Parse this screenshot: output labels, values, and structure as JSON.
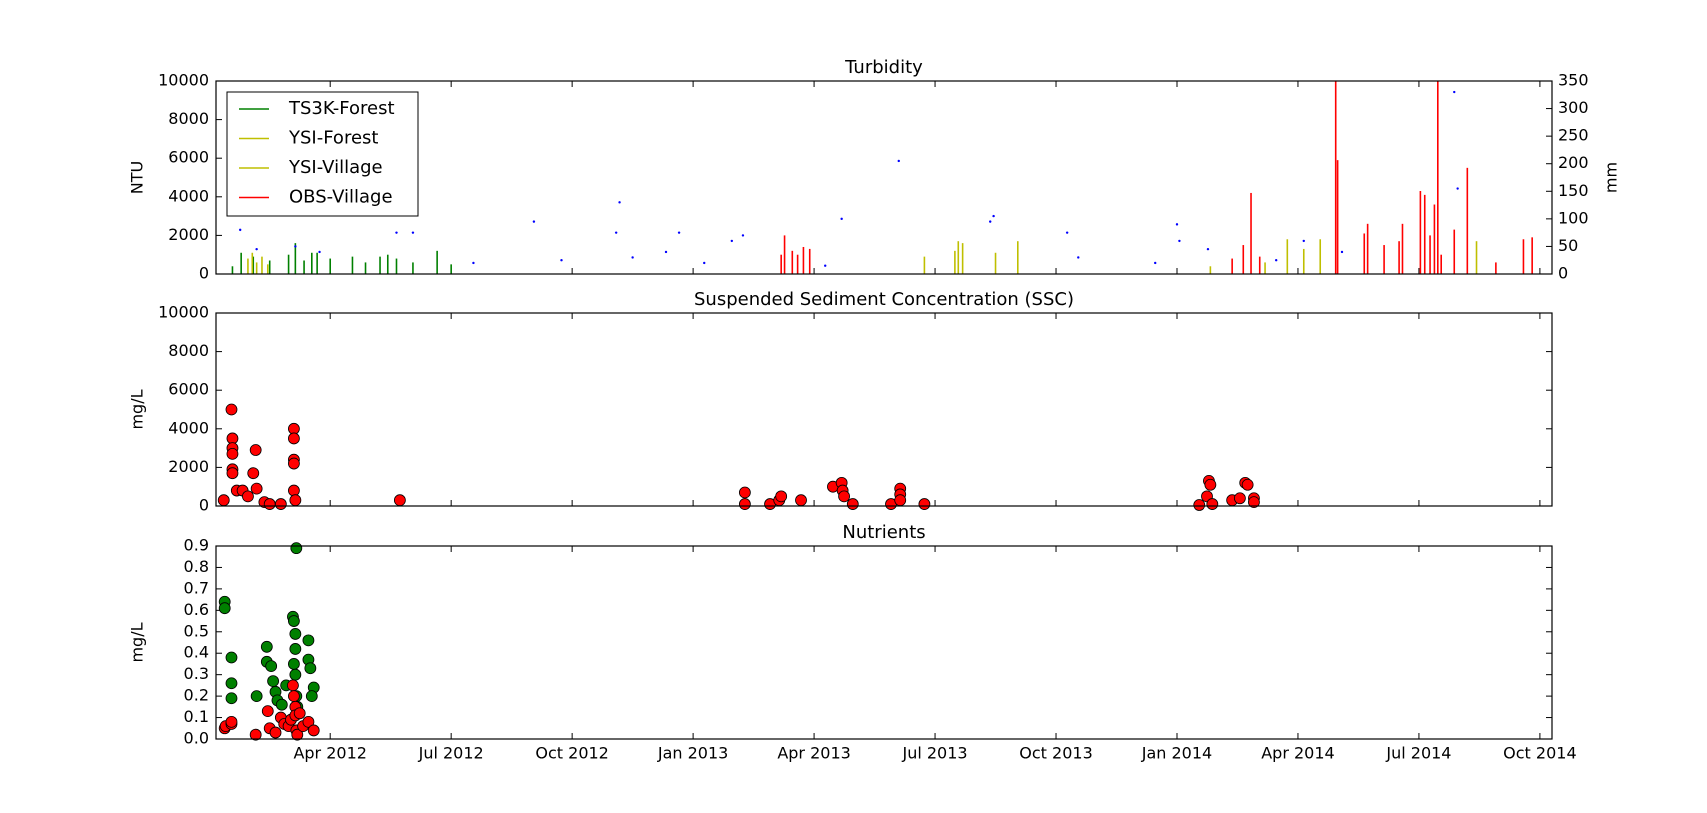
{
  "chart_data": [
    {
      "type": "line",
      "title": "Turbidity",
      "ylabel": "NTU",
      "y2label": "mm",
      "ylim": [
        0,
        10000
      ],
      "yticks": [
        0,
        2000,
        4000,
        6000,
        8000,
        10000
      ],
      "y2lim": [
        0,
        350
      ],
      "y2ticks": [
        0,
        50,
        100,
        150,
        200,
        250,
        300,
        350
      ],
      "xlim": [
        2012.014,
        2014.775
      ],
      "legend": "upper left",
      "series": [
        {
          "name": "TS3K-Forest",
          "color": "#008000",
          "x": [
            2012.048,
            2012.066,
            2012.091,
            2012.125,
            2012.164,
            2012.178,
            2012.196,
            2012.212,
            2012.223,
            2012.25,
            2012.296,
            2012.323,
            2012.353,
            2012.369,
            2012.387,
            2012.421,
            2012.471,
            2012.5
          ],
          "values": [
            400,
            1100,
            900,
            700,
            1000,
            1600,
            700,
            1100,
            1100,
            800,
            900,
            600,
            900,
            1000,
            800,
            600,
            1200,
            500
          ]
        },
        {
          "name": "YSI-Forest",
          "color": "#bfbf00",
          "x": [
            2012.08,
            2012.089,
            2012.098,
            2012.109,
            2012.121
          ],
          "values": [
            800,
            1100,
            600,
            900,
            500
          ]
        },
        {
          "name": "YSI-Village",
          "color": "#bfbf00",
          "x": [
            2013.478,
            2013.541,
            2013.548,
            2013.557,
            2013.625,
            2013.671,
            2014.069,
            2014.182,
            2014.228,
            2014.262,
            2014.296,
            2014.619
          ],
          "values": [
            900,
            1200,
            1700,
            1600,
            1100,
            1700,
            400,
            600,
            1800,
            1300,
            1800,
            1700
          ]
        },
        {
          "name": "OBS-Village",
          "color": "#ff0000",
          "x": [
            2013.182,
            2013.189,
            2013.205,
            2013.216,
            2013.228,
            2013.241,
            2014.114,
            2014.137,
            2014.153,
            2014.171,
            2014.328,
            2014.332,
            2014.387,
            2014.394,
            2014.428,
            2014.459,
            2014.466,
            2014.503,
            2014.512,
            2014.523,
            2014.532,
            2014.539,
            2014.546,
            2014.573,
            2014.6,
            2014.659,
            2014.716,
            2014.734
          ],
          "values": [
            1000,
            2000,
            1200,
            1000,
            1400,
            1300,
            800,
            1500,
            4200,
            900,
            10000,
            5900,
            2100,
            2600,
            1500,
            1700,
            2600,
            4300,
            4100,
            2000,
            3600,
            10000,
            1000,
            2300,
            5500,
            600,
            1800,
            1900
          ]
        },
        {
          "color": "#0000ff",
          "axis": "y2",
          "style": "dots",
          "x": [
            2012.064,
            2012.098,
            2012.178,
            2012.228,
            2012.387,
            2012.421,
            2012.546,
            2012.671,
            2012.728,
            2012.841,
            2012.848,
            2012.875,
            2012.944,
            2012.971,
            2013.023,
            2013.08,
            2013.103,
            2013.273,
            2013.307,
            2013.425,
            2013.614,
            2013.621,
            2013.773,
            2013.796,
            2013.955,
            2014.0,
            2014.005,
            2014.064,
            2014.205,
            2014.262,
            2014.341,
            2014.573,
            2014.58
          ],
          "values": [
            80,
            45,
            50,
            40,
            75,
            75,
            20,
            95,
            25,
            75,
            130,
            30,
            40,
            75,
            20,
            60,
            70,
            15,
            100,
            205,
            95,
            105,
            75,
            30,
            20,
            90,
            60,
            45,
            25,
            60,
            40,
            330,
            155
          ]
        }
      ]
    },
    {
      "type": "scatter",
      "title": "Suspended Sediment Concentration (SSC)",
      "ylabel": "mg/L",
      "ylim": [
        0,
        10000
      ],
      "yticks": [
        0,
        2000,
        4000,
        6000,
        8000,
        10000
      ],
      "xlim": [
        2012.014,
        2014.775
      ],
      "series": [
        {
          "color": "#ff0000",
          "x": [
            2012.03,
            2012.046,
            2012.048,
            2012.048,
            2012.048,
            2012.048,
            2012.048,
            2012.057,
            2012.069,
            2012.08,
            2012.091,
            2012.096,
            2012.098,
            2012.114,
            2012.125,
            2012.148,
            2012.175,
            2012.175,
            2012.175,
            2012.175,
            2012.175,
            2012.178,
            2012.394,
            2013.107,
            2013.107,
            2013.159,
            2013.178,
            2013.182,
            2013.223,
            2013.289,
            2013.307,
            2013.309,
            2013.312,
            2013.33,
            2013.409,
            2013.428,
            2013.428,
            2013.428,
            2013.478,
            2014.046,
            2014.062,
            2014.066,
            2014.069,
            2014.073,
            2014.114,
            2014.13,
            2014.141,
            2014.146,
            2014.159,
            2014.159
          ],
          "values": [
            300,
            5000,
            3500,
            3000,
            2700,
            1900,
            1700,
            800,
            800,
            500,
            1700,
            2900,
            900,
            200,
            100,
            100,
            4000,
            3500,
            2400,
            2200,
            800,
            300,
            300,
            700,
            100,
            100,
            300,
            500,
            300,
            1000,
            1200,
            800,
            500,
            100,
            100,
            900,
            600,
            300,
            100,
            50,
            500,
            1300,
            1100,
            100,
            300,
            400,
            1200,
            1100,
            400,
            200
          ]
        }
      ]
    },
    {
      "type": "scatter",
      "title": "Nutrients",
      "ylabel": "mg/L",
      "ylim": [
        0,
        0.9
      ],
      "yticks": [
        {
          "value": 0,
          "label": "0.0"
        },
        0.1,
        0.2,
        0.3,
        0.4,
        0.5,
        0.6,
        0.7,
        0.8,
        0.9
      ],
      "xlim": [
        2012.014,
        2014.775
      ],
      "xticks": [
        {
          "value": 2012.25,
          "label": "Apr 2012"
        },
        {
          "value": 2012.5,
          "label": "Jul 2012"
        },
        {
          "value": 2012.75,
          "label": "Oct 2012"
        },
        {
          "value": 2013.0,
          "label": "Jan 2013"
        },
        {
          "value": 2013.25,
          "label": "Apr 2013"
        },
        {
          "value": 2013.5,
          "label": "Jul 2013"
        },
        {
          "value": 2013.75,
          "label": "Oct 2013"
        },
        {
          "value": 2014.0,
          "label": "Jan 2014"
        },
        {
          "value": 2014.25,
          "label": "Apr 2014"
        },
        {
          "value": 2014.5,
          "label": "Jul 2014"
        },
        {
          "value": 2014.75,
          "label": "Oct 2014"
        }
      ],
      "series": [
        {
          "color": "#008000",
          "x": [
            2012.032,
            2012.032,
            2012.046,
            2012.046,
            2012.046,
            2012.098,
            2012.119,
            2012.119,
            2012.128,
            2012.132,
            2012.137,
            2012.141,
            2012.15,
            2012.159,
            2012.173,
            2012.175,
            2012.178,
            2012.178,
            2012.175,
            2012.178,
            2012.18,
            2012.18,
            2012.182,
            2012.205,
            2012.205,
            2012.209,
            2012.216,
            2012.212
          ],
          "values": [
            0.64,
            0.61,
            0.38,
            0.26,
            0.19,
            0.2,
            0.43,
            0.36,
            0.34,
            0.27,
            0.22,
            0.18,
            0.16,
            0.25,
            0.57,
            0.55,
            0.49,
            0.42,
            0.35,
            0.3,
            0.89,
            0.2,
            0.15,
            0.46,
            0.37,
            0.33,
            0.24,
            0.2
          ]
        },
        {
          "color": "#ff0000",
          "x": [
            2012.032,
            2012.034,
            2012.046,
            2012.046,
            2012.096,
            2012.121,
            2012.125,
            2012.137,
            2012.148,
            2012.155,
            2012.164,
            2012.169,
            2012.173,
            2012.175,
            2012.178,
            2012.178,
            2012.18,
            2012.182,
            2012.187,
            2012.194,
            2012.205,
            2012.216
          ],
          "values": [
            0.05,
            0.06,
            0.07,
            0.08,
            0.02,
            0.13,
            0.05,
            0.03,
            0.1,
            0.07,
            0.06,
            0.09,
            0.25,
            0.2,
            0.15,
            0.11,
            0.04,
            0.02,
            0.12,
            0.06,
            0.08,
            0.04
          ]
        }
      ]
    }
  ]
}
